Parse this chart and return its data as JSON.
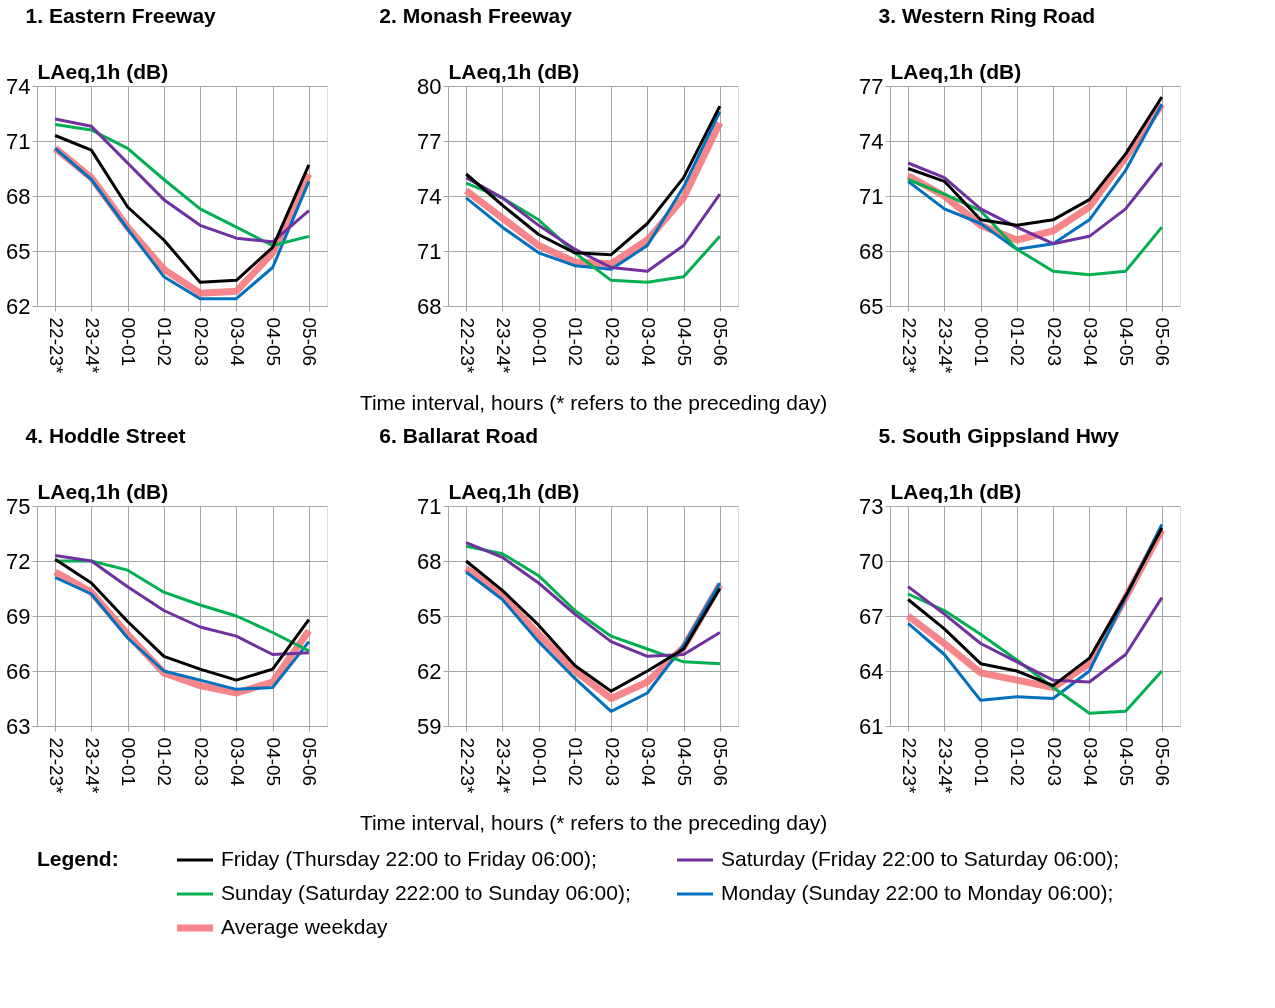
{
  "chart_data": [
    {
      "type": "line",
      "title": "1. Eastern Freeway",
      "ylabel": "LAeq,1h (dB)",
      "legend_title": "Legend:",
      "legend": "bottom",
      "grid": true,
      "categories": [
        "22-23*",
        "23-24*",
        "00-01",
        "01-02",
        "02-03",
        "03-04",
        "04-05",
        "05-06"
      ],
      "ylim": [
        62,
        74
      ],
      "yticks": [
        62,
        65,
        68,
        71,
        74
      ],
      "series": [
        {
          "name": "Friday (Thursday 22:00 to Friday 06:00);",
          "color": "#000000",
          "values": [
            71.3,
            70.5,
            67.4,
            65.6,
            63.3,
            63.4,
            65.2,
            69.7
          ]
        },
        {
          "name": "Saturday (Friday 22:00 to Saturday 06:00);",
          "color": "#7030a0",
          "values": [
            72.2,
            71.8,
            69.8,
            67.8,
            66.4,
            65.7,
            65.5,
            67.2
          ]
        },
        {
          "name": "Sunday (Saturday 222:00 to Sunday 06:00);",
          "color": "#00b050",
          "values": [
            71.9,
            71.6,
            70.6,
            68.9,
            67.3,
            66.3,
            65.3,
            65.8
          ]
        },
        {
          "name": "Monday (Sunday 22:00 to Monday 06:00);",
          "color": "#0070c0",
          "values": [
            70.6,
            68.9,
            66.2,
            63.6,
            62.4,
            62.4,
            64.1,
            68.8
          ]
        },
        {
          "name": "Average weekday",
          "color": "#f47174",
          "values": [
            70.6,
            69.0,
            66.3,
            64.0,
            62.7,
            62.8,
            64.9,
            69.2
          ]
        }
      ]
    },
    {
      "type": "line",
      "title": "2. Monash Freeway",
      "ylabel": "LAeq,1h (dB)",
      "xlabel": "Time interval, hours (* refers to the preceding day)",
      "grid": true,
      "categories": [
        "22-23*",
        "23-24*",
        "00-01",
        "01-02",
        "02-03",
        "03-04",
        "04-05",
        "05-06"
      ],
      "ylim": [
        68,
        80
      ],
      "yticks": [
        68,
        71,
        74,
        77,
        80
      ],
      "series": [
        {
          "color": "#000000",
          "values": [
            75.2,
            73.5,
            71.9,
            70.9,
            70.8,
            72.5,
            75.0,
            78.9
          ]
        },
        {
          "color": "#7030a0",
          "values": [
            75.0,
            73.9,
            72.4,
            71.1,
            70.1,
            69.9,
            71.3,
            74.1
          ]
        },
        {
          "color": "#00b050",
          "values": [
            74.7,
            73.9,
            72.7,
            70.9,
            69.4,
            69.3,
            69.6,
            71.8
          ]
        },
        {
          "color": "#0070c0",
          "values": [
            73.9,
            72.3,
            70.9,
            70.2,
            70.0,
            71.3,
            74.5,
            78.6
          ]
        },
        {
          "color": "#f47174",
          "values": [
            74.3,
            72.8,
            71.3,
            70.4,
            70.3,
            71.6,
            73.9,
            78.0
          ]
        }
      ]
    },
    {
      "type": "line",
      "title": "3. Western Ring Road",
      "ylabel": "LAeq,1h (dB)",
      "grid": true,
      "categories": [
        "22-23*",
        "23-24*",
        "00-01",
        "01-02",
        "02-03",
        "03-04",
        "04-05",
        "05-06"
      ],
      "ylim": [
        65,
        77
      ],
      "yticks": [
        65,
        68,
        71,
        74,
        77
      ],
      "series": [
        {
          "color": "#000000",
          "values": [
            72.5,
            71.8,
            69.7,
            69.4,
            69.7,
            70.8,
            73.3,
            76.4
          ]
        },
        {
          "color": "#7030a0",
          "values": [
            72.8,
            72.0,
            70.3,
            69.3,
            68.4,
            68.8,
            70.3,
            72.8
          ]
        },
        {
          "color": "#00b050",
          "values": [
            71.9,
            71.1,
            70.2,
            68.1,
            66.9,
            66.7,
            66.9,
            69.3
          ]
        },
        {
          "color": "#0070c0",
          "values": [
            71.8,
            70.3,
            69.5,
            68.1,
            68.4,
            69.7,
            72.4,
            76.0
          ]
        },
        {
          "color": "#f47174",
          "values": [
            72.1,
            71.0,
            69.4,
            68.6,
            69.1,
            70.4,
            73.1,
            76.0
          ]
        }
      ]
    },
    {
      "type": "line",
      "title": "4. Hoddle Street",
      "ylabel": "LAeq,1h (dB)",
      "grid": true,
      "categories": [
        "22-23*",
        "23-24*",
        "00-01",
        "01-02",
        "02-03",
        "03-04",
        "04-05",
        "05-06"
      ],
      "ylim": [
        63,
        75
      ],
      "yticks": [
        63,
        66,
        69,
        72,
        75
      ],
      "series": [
        {
          "color": "#000000",
          "values": [
            72.1,
            70.8,
            68.7,
            66.8,
            66.1,
            65.5,
            66.1,
            68.8
          ]
        },
        {
          "color": "#7030a0",
          "values": [
            72.3,
            72.0,
            70.6,
            69.3,
            68.4,
            67.9,
            66.9,
            67.0
          ]
        },
        {
          "color": "#00b050",
          "values": [
            72.0,
            72.0,
            71.5,
            70.3,
            69.6,
            69.0,
            68.1,
            67.1
          ]
        },
        {
          "color": "#0070c0",
          "values": [
            71.1,
            70.2,
            67.8,
            66.0,
            65.5,
            65.0,
            65.1,
            67.6
          ]
        },
        {
          "color": "#f47174",
          "values": [
            71.4,
            70.3,
            68.0,
            65.9,
            65.2,
            64.8,
            65.4,
            68.2
          ]
        }
      ]
    },
    {
      "type": "line",
      "title": "6. Ballarat Road",
      "ylabel": "LAeq,1h (dB)",
      "xlabel": "Time interval, hours (* refers to the preceding day)",
      "grid": true,
      "categories": [
        "22-23*",
        "23-24*",
        "00-01",
        "01-02",
        "02-03",
        "03-04",
        "04-05",
        "05-06"
      ],
      "ylim": [
        59,
        71
      ],
      "yticks": [
        59,
        62,
        65,
        68,
        71
      ],
      "series": [
        {
          "color": "#000000",
          "values": [
            68.0,
            66.4,
            64.5,
            62.3,
            60.9,
            62.0,
            63.2,
            66.5
          ]
        },
        {
          "color": "#7030a0",
          "values": [
            69.0,
            68.2,
            66.8,
            65.1,
            63.6,
            62.8,
            62.9,
            64.1
          ]
        },
        {
          "color": "#00b050",
          "values": [
            68.8,
            68.4,
            67.2,
            65.3,
            63.9,
            63.2,
            62.5,
            62.4
          ]
        },
        {
          "color": "#0070c0",
          "values": [
            67.4,
            65.9,
            63.6,
            61.6,
            59.8,
            60.8,
            63.4,
            66.8
          ]
        },
        {
          "color": "#f47174",
          "values": [
            67.6,
            66.1,
            64.0,
            62.0,
            60.5,
            61.4,
            63.3,
            66.7
          ]
        }
      ]
    },
    {
      "type": "line",
      "title": "5. South Gippsland Hwy",
      "ylabel": "LAeq,1h (dB)",
      "grid": true,
      "categories": [
        "22-23*",
        "23-24*",
        "00-01",
        "01-02",
        "02-03",
        "03-04",
        "04-05",
        "05-06"
      ],
      "ylim": [
        61,
        73
      ],
      "yticks": [
        61,
        64,
        67,
        70,
        73
      ],
      "series": [
        {
          "color": "#000000",
          "values": [
            67.9,
            66.3,
            64.4,
            64.0,
            63.2,
            64.7,
            68.1,
            71.8
          ]
        },
        {
          "color": "#7030a0",
          "values": [
            68.6,
            67.1,
            65.5,
            64.5,
            63.5,
            63.4,
            64.9,
            68.0
          ]
        },
        {
          "color": "#00b050",
          "values": [
            68.2,
            67.3,
            66.0,
            64.6,
            63.1,
            61.7,
            61.8,
            64.0
          ]
        },
        {
          "color": "#0070c0",
          "values": [
            66.6,
            64.9,
            62.4,
            62.6,
            62.5,
            64.0,
            68.0,
            72.0
          ]
        },
        {
          "color": "#f47174",
          "values": [
            67.0,
            65.5,
            63.9,
            63.5,
            63.1,
            64.4,
            68.0,
            71.7
          ]
        }
      ]
    }
  ]
}
